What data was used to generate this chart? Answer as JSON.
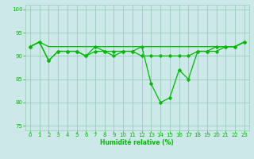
{
  "xlabel": "Humidité relative (%)",
  "bg_color": "#cce8e8",
  "grid_color": "#99ccbb",
  "line_color": "#00bb00",
  "xlim": [
    -0.5,
    23.5
  ],
  "ylim": [
    74,
    101
  ],
  "yticks": [
    75,
    80,
    85,
    90,
    95,
    100
  ],
  "xticks": [
    0,
    1,
    2,
    3,
    4,
    5,
    6,
    7,
    8,
    9,
    10,
    11,
    12,
    13,
    14,
    15,
    16,
    17,
    18,
    19,
    20,
    21,
    22,
    23
  ],
  "line_top": [
    92,
    93,
    92,
    92,
    92,
    92,
    92,
    92,
    92,
    92,
    92,
    92,
    92,
    92,
    92,
    92,
    92,
    92,
    92,
    92,
    92,
    92,
    92,
    93
  ],
  "line_main": [
    92,
    93,
    89,
    91,
    91,
    91,
    90,
    92,
    91,
    91,
    91,
    91,
    92,
    84,
    80,
    81,
    87,
    85,
    91,
    91,
    92,
    92,
    92,
    93
  ],
  "line_flat": [
    92,
    93,
    89,
    91,
    91,
    91,
    90,
    91,
    91,
    90,
    91,
    91,
    90,
    90,
    90,
    90,
    90,
    90,
    91,
    91,
    91,
    92,
    92,
    93
  ]
}
